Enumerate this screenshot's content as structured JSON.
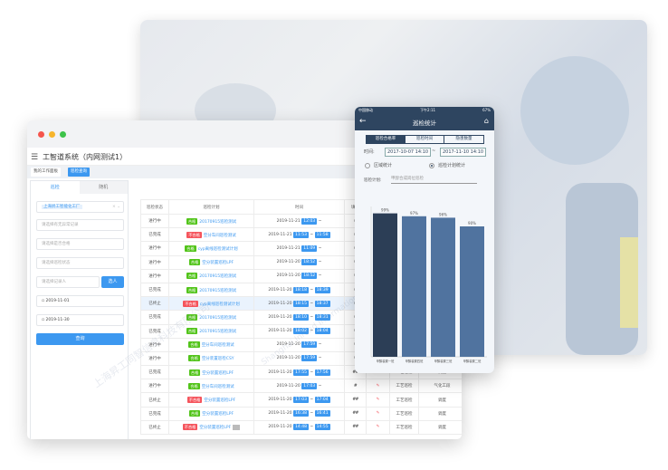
{
  "window": {
    "title": "工智道系统（内网测试1）",
    "tabs": [
      "我的工作面板",
      "巡检查询"
    ]
  },
  "filter": {
    "tabs": [
      "巡检",
      "随机"
    ],
    "plant": "上海昇工智能化工厂",
    "abnormal_placeholder": "请选择有无异常记录",
    "pass_placeholder": "请选择是否合格",
    "status_placeholder": "请选择巡检状态",
    "recorder_placeholder": "请选择记录人",
    "select_label": "选人",
    "date_from": "2019-11-01",
    "date_to": "2019-11-30",
    "query_label": "查询"
  },
  "table": {
    "headers": [
      "巡检状态",
      "巡检计划",
      "时间",
      "填写",
      "",
      "",
      ""
    ],
    "rows": [
      {
        "status": "进行中",
        "result": "合格",
        "plan": "20170915巡检测试",
        "date": "2019-11-21",
        "start": "12:03",
        "end": ""
      },
      {
        "status": "已完成",
        "result": "不合格",
        "plan": "空分车间巡检测试",
        "date": "2019-11-21",
        "start": "11:53",
        "end": "11:58"
      },
      {
        "status": "进行中",
        "result": "合格",
        "plan": "cyp离线巡检测试计划",
        "date": "2019-11-21",
        "start": "11:09",
        "end": ""
      },
      {
        "status": "进行中",
        "result": "合格",
        "plan": "空分装置巡检LPF",
        "date": "2019-11-20",
        "start": "18:52",
        "end": ""
      },
      {
        "status": "进行中",
        "result": "合格",
        "plan": "20170915巡检测试",
        "date": "2019-11-20",
        "start": "18:52",
        "end": ""
      },
      {
        "status": "已完成",
        "result": "合格",
        "plan": "20170915巡检测试",
        "date": "2019-11-20",
        "start": "18:18",
        "end": "18:39"
      },
      {
        "status": "已终止",
        "result": "不合格",
        "plan": "cyp离线巡检测试计划",
        "date": "2019-11-20",
        "start": "18:15",
        "end": "18:37"
      },
      {
        "status": "已完成",
        "result": "合格",
        "plan": "20170915巡检测试",
        "date": "2019-11-20",
        "start": "18:10",
        "end": "18:31"
      },
      {
        "status": "已完成",
        "result": "合格",
        "plan": "20170915巡检测试",
        "date": "2019-11-20",
        "start": "18:02",
        "end": "18:04"
      },
      {
        "status": "进行中",
        "result": "合格",
        "plan": "空分车间巡检测试",
        "date": "2019-11-20",
        "start": "17:59",
        "end": ""
      },
      {
        "status": "进行中",
        "result": "合格",
        "plan": "空分装置巡检CSY",
        "date": "2019-11-20",
        "start": "17:59",
        "end": ""
      },
      {
        "status": "已完成",
        "result": "合格",
        "plan": "空分装置巡检LPF",
        "date": "2019-11-20",
        "start": "17:55",
        "end": "17:56",
        "fill": "##",
        "type": "工艺巡检",
        "dept": "调度"
      },
      {
        "status": "进行中",
        "result": "合格",
        "plan": "空分车间巡检测试",
        "date": "2019-11-20",
        "start": "17:03",
        "end": "",
        "fill": "#",
        "type": "工艺巡检",
        "dept": "气化工段"
      },
      {
        "status": "已终止",
        "result": "不合格",
        "plan": "空分装置巡检LPF",
        "date": "2019-11-20",
        "start": "17:03",
        "end": "17:04",
        "fill": "##",
        "type": "工艺巡检",
        "dept": "调度"
      },
      {
        "status": "已完成",
        "result": "合格",
        "plan": "空分装置巡检LPF",
        "date": "2019-11-20",
        "start": "16:38",
        "end": "16:41",
        "fill": "##",
        "type": "工艺巡检",
        "dept": "调度"
      },
      {
        "status": "已终止",
        "result": "不合格",
        "plan": "空分装置巡检LPF",
        "date": "2019-11-20",
        "start": "14:48",
        "end": "14:55",
        "fill": "##",
        "type": "工艺巡检",
        "dept": "调度"
      }
    ]
  },
  "phone": {
    "carrier": "中国移动",
    "time": "下午2:11",
    "battery": "67%",
    "title": "巡检统计",
    "segments": [
      "巡检合格率",
      "巡检时间",
      "隐患数量"
    ],
    "time_label": "时间:",
    "from": "2017-10-07 14:10",
    "to": "2017-11-10 14:10",
    "radio_area": "区域统计",
    "radio_plan": "巡检计划统计",
    "plan_label": "巡检计划:",
    "plan_value": "甲醇合成岗位巡检"
  },
  "chart_data": {
    "type": "bar",
    "categories": [
      "甲醇装置一班",
      "甲醇装置四班",
      "甲醇装置三班",
      "甲醇装置二班"
    ],
    "values": [
      99,
      97,
      96,
      90
    ],
    "value_labels": [
      "99%",
      "97%",
      "96%",
      "90%"
    ],
    "ylim": [
      0,
      100
    ],
    "colors": [
      "#2c3e56",
      "#50739f",
      "#50739f",
      "#50739f"
    ]
  },
  "watermark": [
    "上海昇工同智信息科技有限公司",
    "Shanghai Inroad Information Technology Co., Ltd."
  ],
  "colors": {
    "primary": "#3c98f0",
    "pass": "#52c41a",
    "fail": "#f5545c",
    "phone_nav": "#2e4560"
  }
}
